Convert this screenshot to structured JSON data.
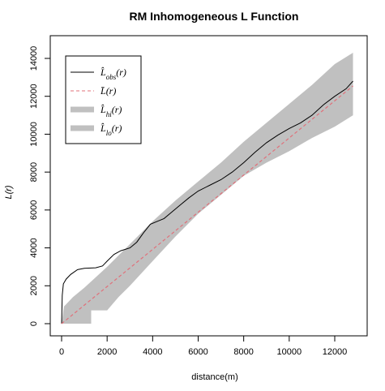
{
  "chart_data": {
    "type": "line",
    "title": "RM Inhomogeneous L Function",
    "xlabel": "distance(m)",
    "ylabel": "L(r)",
    "xlim": [
      0,
      12900
    ],
    "ylim": [
      0,
      14500
    ],
    "xticks": [
      0,
      2000,
      4000,
      6000,
      8000,
      10000,
      12000
    ],
    "yticks": [
      0,
      2000,
      4000,
      6000,
      8000,
      10000,
      12000,
      14000
    ],
    "grid": false,
    "legend_position": "top-left",
    "series": [
      {
        "name": "L̂obs(r)",
        "legend_main": "L̂",
        "legend_sub": "obs",
        "legend_suffix": "(r)",
        "style": "solid",
        "color": "#000000",
        "points": [
          [
            0,
            0
          ],
          [
            30,
            1500
          ],
          [
            80,
            2100
          ],
          [
            200,
            2350
          ],
          [
            400,
            2600
          ],
          [
            700,
            2850
          ],
          [
            1000,
            2920
          ],
          [
            1500,
            2950
          ],
          [
            1800,
            3050
          ],
          [
            2000,
            3300
          ],
          [
            2300,
            3650
          ],
          [
            2600,
            3850
          ],
          [
            3000,
            4000
          ],
          [
            3300,
            4300
          ],
          [
            3600,
            4800
          ],
          [
            3900,
            5250
          ],
          [
            4200,
            5400
          ],
          [
            4500,
            5550
          ],
          [
            4800,
            5850
          ],
          [
            5200,
            6250
          ],
          [
            5600,
            6650
          ],
          [
            6000,
            7000
          ],
          [
            6500,
            7300
          ],
          [
            7000,
            7600
          ],
          [
            7500,
            8000
          ],
          [
            8000,
            8500
          ],
          [
            8500,
            9050
          ],
          [
            9000,
            9550
          ],
          [
            9500,
            9950
          ],
          [
            10000,
            10300
          ],
          [
            10500,
            10600
          ],
          [
            11000,
            11000
          ],
          [
            11500,
            11550
          ],
          [
            12000,
            12000
          ],
          [
            12500,
            12400
          ],
          [
            12800,
            12800
          ]
        ]
      },
      {
        "name": "L̄(r)",
        "legend_main": "L̄",
        "legend_sub": "",
        "legend_suffix": "(r)",
        "style": "dashed",
        "color": "#e0707a",
        "points": [
          [
            0,
            0
          ],
          [
            12800,
            12550
          ]
        ]
      },
      {
        "name": "L̂hi(r)",
        "legend_main": "L̂",
        "legend_sub": "hi",
        "legend_suffix": "(r)",
        "style": "band-upper",
        "color": "#c0c0c0",
        "points": [
          [
            0,
            0
          ],
          [
            100,
            900
          ],
          [
            500,
            1400
          ],
          [
            1000,
            1900
          ],
          [
            2000,
            3000
          ],
          [
            3000,
            4200
          ],
          [
            4000,
            5400
          ],
          [
            5000,
            6500
          ],
          [
            6000,
            7500
          ],
          [
            7000,
            8500
          ],
          [
            8000,
            9600
          ],
          [
            9000,
            10600
          ],
          [
            10000,
            11600
          ],
          [
            11000,
            12600
          ],
          [
            12000,
            13700
          ],
          [
            12800,
            14300
          ]
        ]
      },
      {
        "name": "L̂lo(r)",
        "legend_main": "L̂",
        "legend_sub": "lo",
        "legend_suffix": "(r)",
        "style": "band-lower",
        "color": "#c0c0c0",
        "points": [
          [
            0,
            0
          ],
          [
            100,
            0
          ],
          [
            300,
            0
          ],
          [
            500,
            0
          ],
          [
            1000,
            0
          ],
          [
            1300,
            0
          ],
          [
            1300,
            700
          ],
          [
            2000,
            700
          ],
          [
            2500,
            1400
          ],
          [
            3000,
            2000
          ],
          [
            4000,
            3300
          ],
          [
            5000,
            4600
          ],
          [
            6000,
            5800
          ],
          [
            7000,
            6800
          ],
          [
            8000,
            7800
          ],
          [
            9000,
            8500
          ],
          [
            10000,
            9100
          ],
          [
            11000,
            9800
          ],
          [
            12000,
            10400
          ],
          [
            12800,
            11000
          ]
        ]
      }
    ]
  }
}
